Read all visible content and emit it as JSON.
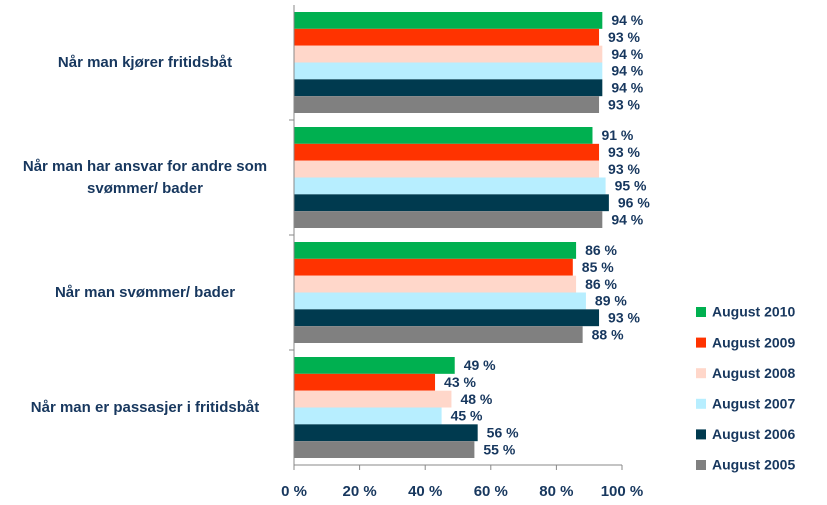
{
  "chart_data": {
    "type": "bar",
    "orientation": "horizontal",
    "categories": [
      "Når man kjører fritidsbåt",
      "Når man har ansvar for andre som svømmer/ bader",
      "Når man svømmer/ bader",
      "Når man er passasjer i fritidsbåt"
    ],
    "series": [
      {
        "name": "August 2010",
        "color": "#00b050",
        "values": [
          94,
          91,
          86,
          49
        ],
        "value_labels": [
          "94 %",
          "91 %",
          "86 %",
          "49 %"
        ]
      },
      {
        "name": "August 2009",
        "color": "#ff3300",
        "values": [
          93,
          93,
          85,
          43
        ],
        "value_labels": [
          "93 %",
          "93 %",
          "85 %",
          "43 %"
        ]
      },
      {
        "name": "August 2008",
        "color": "#ffd7ca",
        "values": [
          94,
          93,
          86,
          48
        ],
        "value_labels": [
          "94 %",
          "93 %",
          "86 %",
          "48 %"
        ]
      },
      {
        "name": "August 2007",
        "color": "#b7eeff",
        "values": [
          94,
          95,
          89,
          45
        ],
        "value_labels": [
          "94 %",
          "95 %",
          "89 %",
          "45 %"
        ]
      },
      {
        "name": "August 2006",
        "color": "#003a4f",
        "values": [
          94,
          96,
          93,
          56
        ],
        "value_labels": [
          "94 %",
          "96 %",
          "93 %",
          "56 %"
        ]
      },
      {
        "name": "August 2005",
        "color": "#808080",
        "values": [
          93,
          94,
          88,
          55
        ],
        "value_labels": [
          "93 %",
          "94 %",
          "88 %",
          "55 %"
        ]
      }
    ],
    "xlim": [
      0,
      100
    ],
    "xticks": [
      {
        "value": 0,
        "label": "0 %"
      },
      {
        "value": 20,
        "label": "20 %"
      },
      {
        "value": 40,
        "label": "40 %"
      },
      {
        "value": 60,
        "label": "60 %"
      },
      {
        "value": 80,
        "label": "80 %"
      },
      {
        "value": 100,
        "label": "100 %"
      }
    ],
    "legend": "right"
  }
}
